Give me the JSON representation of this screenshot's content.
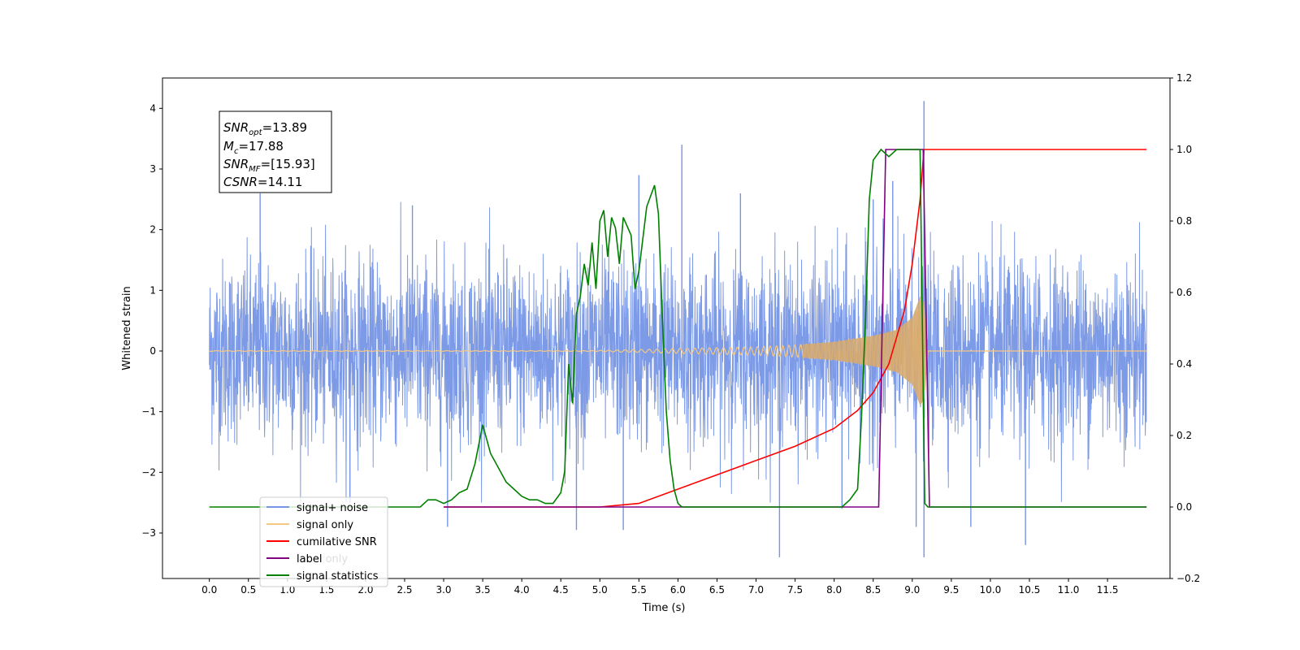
{
  "chart_data": {
    "type": "line",
    "xlabel": "Time (s)",
    "ylabel": "Whitened strain",
    "xlim": [
      -0.6,
      12.3
    ],
    "ylim": [
      -3.75,
      4.5
    ],
    "ylim_right": [
      -0.2,
      1.2
    ],
    "x_ticks": [
      "0.0",
      "0.5",
      "1.0",
      "1.5",
      "2.0",
      "2.5",
      "3.0",
      "3.5",
      "4.0",
      "4.5",
      "5.0",
      "5.5",
      "6.0",
      "6.5",
      "7.0",
      "7.5",
      "8.0",
      "8.5",
      "9.0",
      "9.5",
      "10.0",
      "10.5",
      "11.0",
      "11.5"
    ],
    "y_ticks_left": [
      -3,
      -2,
      -1,
      0,
      1,
      2,
      3,
      4
    ],
    "y_ticks_right": [
      "−0.2",
      "0.0",
      "0.2",
      "0.4",
      "0.6",
      "0.8",
      "1.0",
      "1.2"
    ],
    "stats_box": [
      {
        "base": "SNR",
        "sub": "opt",
        "value": "=13.89"
      },
      {
        "base": "M",
        "sub": "c",
        "value": "=17.88"
      },
      {
        "base": "SNR",
        "sub": "MF",
        "value": "=[15.93]"
      },
      {
        "base": "CSNR",
        "sub": "",
        "value": "=14.11"
      }
    ],
    "legend": {
      "position": "lower-left",
      "entries": [
        {
          "label": "signal+ noise",
          "color": "#7695e6"
        },
        {
          "label": "signal only",
          "color": "#f5c882"
        },
        {
          "label": "cumilative SNR",
          "color": "#ff0000"
        },
        {
          "label": "label",
          "color": "#800080"
        },
        {
          "label": "signal statistics",
          "color": "#007f00"
        }
      ],
      "hidden_text": [
        "label only"
      ]
    },
    "series": [
      {
        "name": "signal+ noise",
        "axis": "left",
        "color": "#7695e6",
        "x_range": [
          0,
          12.0
        ],
        "band_sigma": 0.75,
        "spikes": [
          [
            0.65,
            2.6
          ],
          [
            3.05,
            -2.9
          ],
          [
            4.7,
            -2.95
          ],
          [
            5.3,
            -2.95
          ],
          [
            5.5,
            2.9
          ],
          [
            6.05,
            3.4
          ],
          [
            6.8,
            2.6
          ],
          [
            7.3,
            -3.4
          ],
          [
            8.1,
            -2.6
          ],
          [
            8.5,
            2.5
          ],
          [
            8.75,
            2.8
          ],
          [
            9.05,
            -2.9
          ],
          [
            9.15,
            4.12
          ],
          [
            9.15,
            -3.4
          ],
          [
            9.75,
            -2.9
          ],
          [
            10.45,
            -3.2
          ],
          [
            1.8,
            -2.5
          ],
          [
            2.6,
            2.4
          ]
        ]
      },
      {
        "name": "signal only",
        "axis": "left",
        "color": "#f5c882",
        "x_range": [
          0,
          12.0
        ],
        "envelope": [
          [
            5.0,
            0.01
          ],
          [
            6.0,
            0.04
          ],
          [
            7.0,
            0.07
          ],
          [
            7.5,
            0.1
          ],
          [
            8.0,
            0.15
          ],
          [
            8.5,
            0.25
          ],
          [
            8.8,
            0.35
          ],
          [
            9.0,
            0.55
          ],
          [
            9.1,
            0.9
          ],
          [
            9.15,
            0.8
          ],
          [
            9.2,
            0.02
          ]
        ]
      },
      {
        "name": "cumilative SNR",
        "axis": "right",
        "color": "#ff0000",
        "x": [
          3.0,
          5.0,
          5.5,
          6.0,
          6.5,
          7.0,
          7.5,
          8.0,
          8.3,
          8.5,
          8.7,
          8.9,
          9.0,
          9.1,
          9.15,
          9.5,
          10.0,
          11.0,
          12.0
        ],
        "values": [
          0.0,
          0.0,
          0.01,
          0.05,
          0.09,
          0.13,
          0.17,
          0.22,
          0.27,
          0.32,
          0.4,
          0.55,
          0.68,
          0.86,
          1.0,
          1.0,
          1.0,
          1.0,
          1.0
        ]
      },
      {
        "name": "label",
        "axis": "right",
        "color": "#800080",
        "x": [
          3.0,
          8.57,
          8.66,
          9.14,
          9.22,
          9.28,
          12.0
        ],
        "values": [
          0.0,
          0.0,
          1.0,
          1.0,
          0.0,
          0.0,
          0.0
        ]
      },
      {
        "name": "signal statistics",
        "axis": "right",
        "color": "#007f00",
        "x": [
          0.0,
          2.5,
          2.7,
          2.8,
          2.9,
          3.0,
          3.1,
          3.2,
          3.3,
          3.4,
          3.5,
          3.6,
          3.8,
          3.9,
          4.0,
          4.1,
          4.2,
          4.3,
          4.4,
          4.5,
          4.55,
          4.6,
          4.65,
          4.7,
          4.75,
          4.8,
          4.85,
          4.9,
          4.95,
          5.0,
          5.05,
          5.1,
          5.15,
          5.2,
          5.25,
          5.3,
          5.4,
          5.45,
          5.5,
          5.6,
          5.7,
          5.75,
          5.8,
          5.85,
          5.9,
          5.95,
          6.0,
          6.05,
          6.1,
          8.1,
          8.2,
          8.3,
          8.35,
          8.4,
          8.45,
          8.5,
          8.6,
          8.7,
          8.8,
          9.0,
          9.1,
          9.13,
          9.16,
          9.2,
          12.0
        ],
        "values": [
          0.0,
          0.0,
          0.0,
          0.02,
          0.02,
          0.01,
          0.02,
          0.04,
          0.05,
          0.12,
          0.23,
          0.15,
          0.07,
          0.05,
          0.03,
          0.02,
          0.02,
          0.01,
          0.01,
          0.04,
          0.1,
          0.4,
          0.29,
          0.54,
          0.59,
          0.68,
          0.62,
          0.74,
          0.61,
          0.8,
          0.83,
          0.7,
          0.81,
          0.78,
          0.68,
          0.81,
          0.76,
          0.61,
          0.66,
          0.84,
          0.9,
          0.82,
          0.53,
          0.27,
          0.13,
          0.05,
          0.01,
          0.0,
          0.0,
          0.0,
          0.02,
          0.05,
          0.25,
          0.52,
          0.86,
          0.97,
          1.0,
          0.98,
          1.0,
          1.0,
          1.0,
          0.5,
          0.01,
          0.0,
          0.0
        ]
      }
    ]
  }
}
